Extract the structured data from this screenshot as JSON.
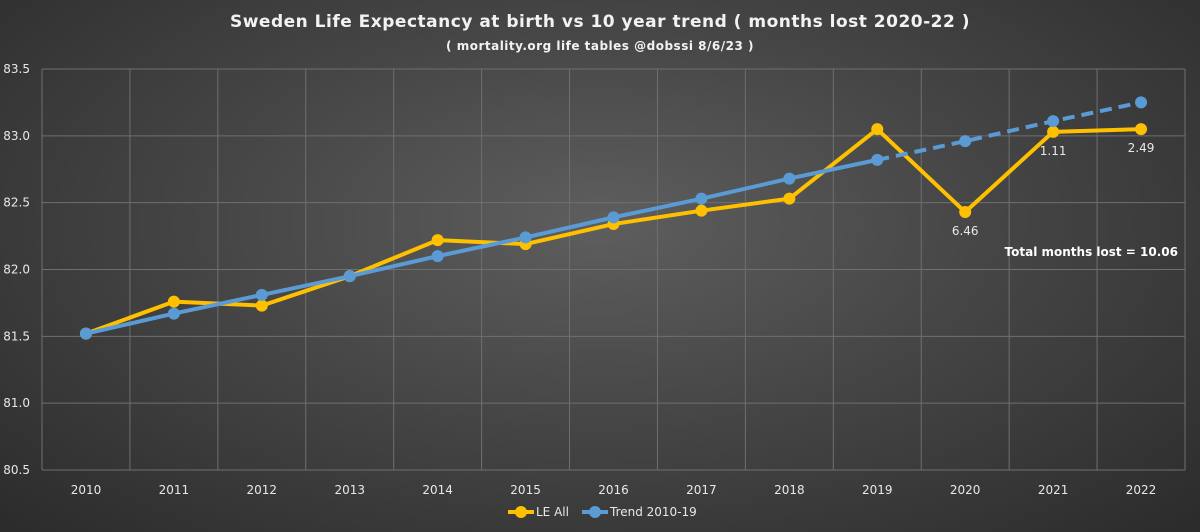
{
  "chart_data": {
    "type": "line",
    "title": "Sweden Life Expectancy at birth vs 10 year trend ( months lost 2020-22 )",
    "subtitle": "( mortality.org life tables @dobssi 8/6/23 )",
    "xlabel": "",
    "ylabel": "",
    "categories": [
      "2010",
      "2011",
      "2012",
      "2013",
      "2014",
      "2015",
      "2016",
      "2017",
      "2018",
      "2019",
      "2020",
      "2021",
      "2022"
    ],
    "ylim": [
      80.5,
      83.5
    ],
    "yticks": [
      80.5,
      81.0,
      81.5,
      82.0,
      82.5,
      83.0,
      83.5
    ],
    "grid": true,
    "legend_position": "bottom",
    "series": [
      {
        "name": "LE All",
        "color": "#ffc000",
        "values": [
          81.52,
          81.76,
          81.73,
          81.95,
          82.22,
          82.19,
          82.34,
          82.44,
          82.53,
          83.05,
          82.43,
          83.03,
          83.05
        ]
      },
      {
        "name": "Trend 2010-19",
        "color": "#5b9bd5",
        "values": [
          81.52,
          81.67,
          81.81,
          81.95,
          82.1,
          82.24,
          82.39,
          82.53,
          82.68,
          82.82,
          82.96,
          83.11,
          83.25
        ],
        "solid_until": "2019",
        "dashed_after": "2019"
      }
    ],
    "point_labels": [
      {
        "category": "2020",
        "text": "6.46"
      },
      {
        "category": "2021",
        "text": "1.11"
      },
      {
        "category": "2022",
        "text": "2.49"
      }
    ],
    "annotation": "Total months lost = 10.06"
  }
}
